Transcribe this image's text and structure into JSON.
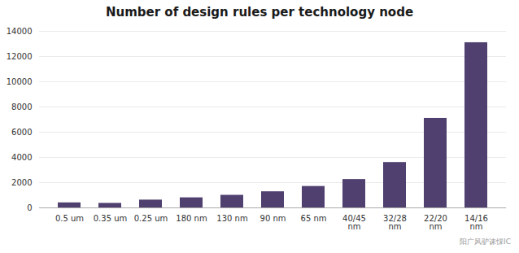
{
  "chart_data": {
    "type": "bar",
    "title": "Number of design rules per technology node",
    "categories": [
      "0.5 um",
      "0.35 um",
      "0.25 um",
      "180 nm",
      "130 nm",
      "90 nm",
      "65 nm",
      "40/45\nnm",
      "32/28\nnm",
      "22/20\nnm",
      "14/16\nnm"
    ],
    "values": [
      400,
      360,
      620,
      800,
      1000,
      1280,
      1700,
      2250,
      3600,
      7100,
      13100
    ],
    "color": "#504070",
    "ylim": [
      0,
      14000
    ],
    "yticks": [
      0,
      2000,
      4000,
      6000,
      8000,
      10000,
      12000,
      14000
    ],
    "grid": true,
    "annotations": [
      "阳广风驴诔惈IC"
    ]
  }
}
